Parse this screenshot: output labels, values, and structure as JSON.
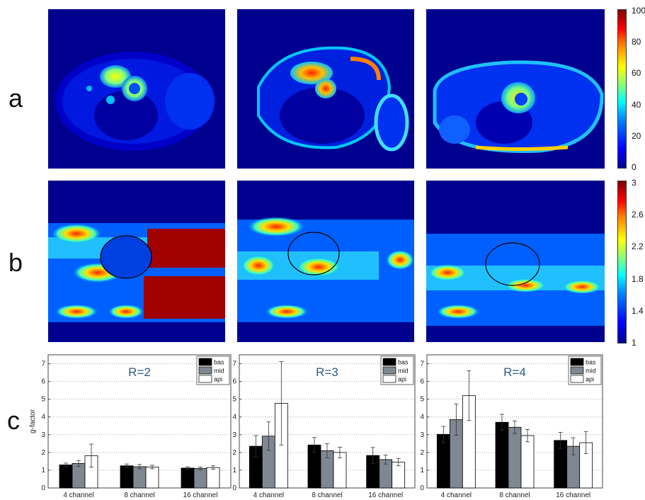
{
  "panel_labels": {
    "a": "a",
    "b": "b",
    "c": "c"
  },
  "colorbar_a": {
    "ticks": [
      "100",
      "80",
      "60",
      "40",
      "20",
      "0"
    ]
  },
  "colorbar_b": {
    "ticks": [
      "3",
      "2.6",
      "2.2",
      "1.8",
      "1.4",
      "1"
    ]
  },
  "colormap": [
    "#00008f",
    "#0000ff",
    "#0080ff",
    "#00ffff",
    "#80ff80",
    "#ffff00",
    "#ff8000",
    "#ff0000",
    "#800000"
  ],
  "chart_data": [
    {
      "type": "bar",
      "title": "R=2",
      "ylabel": "g-factor",
      "xlabel": "",
      "categories": [
        "4 channel",
        "8 channel",
        "16 channel"
      ],
      "ylim": [
        0,
        7.5
      ],
      "yticks": [
        "0",
        "1",
        "2",
        "3",
        "4",
        "5",
        "6",
        "7"
      ],
      "grid": true,
      "legend_position": "top-right",
      "series": [
        {
          "name": "bas",
          "color": "#000000",
          "values": [
            1.3,
            1.25,
            1.12
          ],
          "err": [
            0.1,
            0.1,
            0.07
          ]
        },
        {
          "name": "mid",
          "color": "#7f8791",
          "values": [
            1.38,
            1.2,
            1.1
          ],
          "err": [
            0.17,
            0.12,
            0.08
          ]
        },
        {
          "name": "api",
          "color": "#ffffff",
          "values": [
            1.82,
            1.18,
            1.15
          ],
          "err": [
            0.65,
            0.1,
            0.1
          ]
        }
      ]
    },
    {
      "type": "bar",
      "title": "R=3",
      "ylabel": "",
      "xlabel": "",
      "categories": [
        "4 channel",
        "8 channel",
        "16 channel"
      ],
      "ylim": [
        0,
        7.5
      ],
      "yticks": [
        "0",
        "1",
        "2",
        "3",
        "4",
        "5",
        "6",
        "7"
      ],
      "grid": true,
      "legend_position": "top-right",
      "series": [
        {
          "name": "bas",
          "color": "#000000",
          "values": [
            2.35,
            2.42,
            1.83
          ],
          "err": [
            0.6,
            0.42,
            0.45
          ]
        },
        {
          "name": "mid",
          "color": "#7f8791",
          "values": [
            2.92,
            2.1,
            1.6
          ],
          "err": [
            0.8,
            0.4,
            0.25
          ]
        },
        {
          "name": "api",
          "color": "#ffffff",
          "values": [
            4.77,
            2.0,
            1.45
          ],
          "err": [
            2.35,
            0.3,
            0.2
          ]
        }
      ]
    },
    {
      "type": "bar",
      "title": "R=4",
      "ylabel": "",
      "xlabel": "",
      "categories": [
        "4 channel",
        "8 channel",
        "16 channel"
      ],
      "ylim": [
        0,
        7.5
      ],
      "yticks": [
        "0",
        "1",
        "2",
        "3",
        "4",
        "5",
        "6",
        "7"
      ],
      "grid": true,
      "legend_position": "top-right",
      "series": [
        {
          "name": "bas",
          "color": "#000000",
          "values": [
            3.02,
            3.7,
            2.68
          ],
          "err": [
            0.45,
            0.45,
            0.45
          ]
        },
        {
          "name": "mid",
          "color": "#7f8791",
          "values": [
            3.85,
            3.42,
            2.35
          ],
          "err": [
            0.88,
            0.35,
            0.48
          ]
        },
        {
          "name": "api",
          "color": "#ffffff",
          "values": [
            5.2,
            2.95,
            2.55
          ],
          "err": [
            1.4,
            0.35,
            0.62
          ]
        }
      ]
    }
  ]
}
